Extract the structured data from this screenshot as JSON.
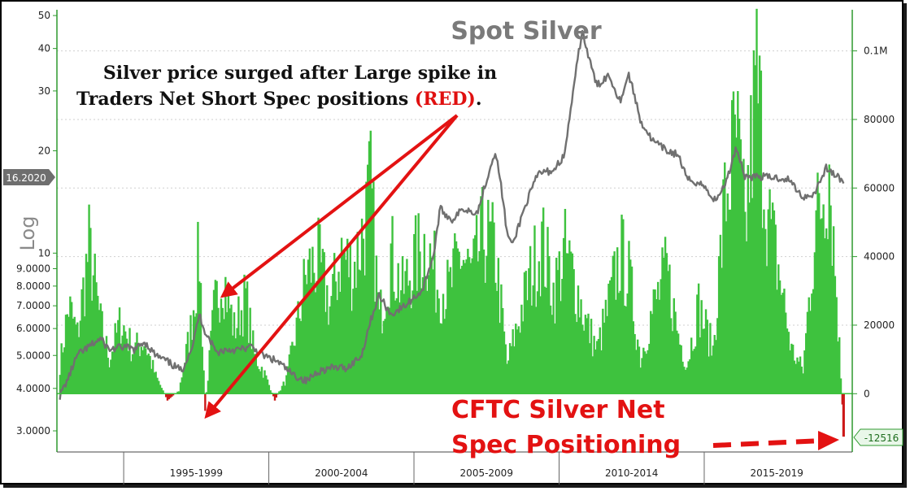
{
  "chart_data": {
    "type": "line+bar",
    "title": "Spot Silver",
    "ylabel_left": "Log",
    "left_axis": {
      "scale": "log",
      "ticks": [
        {
          "v": 50,
          "label": "50"
        },
        {
          "v": 40,
          "label": "40"
        },
        {
          "v": 30,
          "label": "30"
        },
        {
          "v": 20,
          "label": "20"
        },
        {
          "v": 10,
          "label": "10"
        },
        {
          "v": 9,
          "label": "9.0000"
        },
        {
          "v": 8,
          "label": "8.0000"
        },
        {
          "v": 7,
          "label": "7.0000"
        },
        {
          "v": 6,
          "label": "6.0000"
        },
        {
          "v": 5,
          "label": "5.0000"
        },
        {
          "v": 4,
          "label": "4.0000"
        },
        {
          "v": 3,
          "label": "3.0000"
        }
      ],
      "ylim": [
        2.6,
        52
      ]
    },
    "right_axis": {
      "ticks": [
        {
          "v": 100000,
          "label": "0.1M"
        },
        {
          "v": 80000,
          "label": "80000"
        },
        {
          "v": 60000,
          "label": "60000"
        },
        {
          "v": 40000,
          "label": "40000"
        },
        {
          "v": 20000,
          "label": "20000"
        },
        {
          "v": 0,
          "label": "0"
        }
      ],
      "ylim": [
        -17000,
        112000
      ]
    },
    "x_periods": [
      "1995-1999",
      "2000-2004",
      "2005-2009",
      "2010-2014",
      "2015-2019"
    ],
    "x_range": [
      1993.2,
      2020.6
    ],
    "last_price_label": "16.2020",
    "last_position_label": "-12516",
    "silver_price": [
      [
        1993.3,
        3.8
      ],
      [
        1993.6,
        4.3
      ],
      [
        1993.9,
        5.0
      ],
      [
        1994.3,
        5.3
      ],
      [
        1994.7,
        5.6
      ],
      [
        1995.0,
        5.2
      ],
      [
        1995.5,
        5.3
      ],
      [
        1995.9,
        5.2
      ],
      [
        1996.2,
        5.5
      ],
      [
        1996.6,
        5.0
      ],
      [
        1997.0,
        4.8
      ],
      [
        1997.5,
        4.5
      ],
      [
        1997.9,
        5.4
      ],
      [
        1998.1,
        6.6
      ],
      [
        1998.3,
        5.9
      ],
      [
        1998.7,
        5.1
      ],
      [
        1999.0,
        5.2
      ],
      [
        1999.5,
        5.2
      ],
      [
        1999.9,
        5.3
      ],
      [
        2000.3,
        5.0
      ],
      [
        2000.8,
        4.8
      ],
      [
        2001.3,
        4.4
      ],
      [
        2001.8,
        4.2
      ],
      [
        2002.2,
        4.5
      ],
      [
        2002.7,
        4.6
      ],
      [
        2003.2,
        4.6
      ],
      [
        2003.7,
        5.0
      ],
      [
        2004.0,
        6.3
      ],
      [
        2004.3,
        7.5
      ],
      [
        2004.7,
        6.6
      ],
      [
        2005.2,
        7.0
      ],
      [
        2005.8,
        7.8
      ],
      [
        2006.2,
        10.0
      ],
      [
        2006.4,
        13.5
      ],
      [
        2006.8,
        12.5
      ],
      [
        2007.2,
        13.5
      ],
      [
        2007.7,
        13.2
      ],
      [
        2008.1,
        17.5
      ],
      [
        2008.3,
        20.0
      ],
      [
        2008.7,
        11.5
      ],
      [
        2008.9,
        10.5
      ],
      [
        2009.3,
        13.5
      ],
      [
        2009.8,
        17.2
      ],
      [
        2010.3,
        17.5
      ],
      [
        2010.7,
        19.5
      ],
      [
        2011.0,
        30.0
      ],
      [
        2011.3,
        45.0
      ],
      [
        2011.5,
        38.0
      ],
      [
        2011.8,
        31.0
      ],
      [
        2012.2,
        33.5
      ],
      [
        2012.6,
        28.0
      ],
      [
        2012.9,
        33.5
      ],
      [
        2013.3,
        24.5
      ],
      [
        2013.7,
        21.5
      ],
      [
        2014.2,
        20.0
      ],
      [
        2014.6,
        19.5
      ],
      [
        2014.9,
        16.5
      ],
      [
        2015.4,
        16.0
      ],
      [
        2015.9,
        14.2
      ],
      [
        2016.3,
        16.5
      ],
      [
        2016.6,
        20.5
      ],
      [
        2016.9,
        16.8
      ],
      [
        2017.4,
        16.8
      ],
      [
        2017.9,
        16.7
      ],
      [
        2018.4,
        16.5
      ],
      [
        2018.9,
        14.6
      ],
      [
        2019.3,
        15.0
      ],
      [
        2019.7,
        17.8
      ],
      [
        2020.0,
        17.0
      ],
      [
        2020.3,
        16.2
      ]
    ],
    "net_spec_positioning": [
      [
        1993.3,
        10000
      ],
      [
        1993.6,
        30000
      ],
      [
        1993.9,
        20000
      ],
      [
        1994.3,
        50000
      ],
      [
        1994.7,
        24000
      ],
      [
        1995.0,
        12000
      ],
      [
        1995.4,
        25000
      ],
      [
        1995.8,
        15000
      ],
      [
        1996.2,
        18000
      ],
      [
        1996.6,
        6000
      ],
      [
        1997.0,
        -2000
      ],
      [
        1997.4,
        1000
      ],
      [
        1997.8,
        22000
      ],
      [
        1998.1,
        48000
      ],
      [
        1998.3,
        -5000
      ],
      [
        1998.6,
        28000
      ],
      [
        1998.9,
        42000
      ],
      [
        1999.3,
        22000
      ],
      [
        1999.7,
        33000
      ],
      [
        2000.0,
        13000
      ],
      [
        2000.3,
        8000
      ],
      [
        2000.7,
        -2000
      ],
      [
        2001.1,
        5000
      ],
      [
        2001.5,
        25000
      ],
      [
        2001.8,
        42000
      ],
      [
        2002.2,
        45000
      ],
      [
        2002.6,
        30000
      ],
      [
        2003.0,
        48000
      ],
      [
        2003.4,
        42000
      ],
      [
        2003.8,
        58000
      ],
      [
        2004.0,
        70000
      ],
      [
        2004.3,
        25000
      ],
      [
        2004.7,
        48000
      ],
      [
        2005.1,
        35000
      ],
      [
        2005.5,
        45000
      ],
      [
        2005.9,
        52000
      ],
      [
        2006.3,
        38000
      ],
      [
        2006.7,
        35000
      ],
      [
        2007.1,
        48000
      ],
      [
        2007.5,
        40000
      ],
      [
        2007.9,
        55000
      ],
      [
        2008.3,
        48000
      ],
      [
        2008.7,
        10000
      ],
      [
        2009.1,
        25000
      ],
      [
        2009.5,
        40000
      ],
      [
        2009.9,
        52000
      ],
      [
        2010.3,
        35000
      ],
      [
        2010.7,
        48000
      ],
      [
        2011.0,
        40000
      ],
      [
        2011.4,
        25000
      ],
      [
        2011.8,
        15000
      ],
      [
        2012.2,
        30000
      ],
      [
        2012.6,
        48000
      ],
      [
        2012.9,
        40000
      ],
      [
        2013.3,
        12000
      ],
      [
        2013.7,
        28000
      ],
      [
        2014.2,
        42000
      ],
      [
        2014.6,
        20000
      ],
      [
        2014.9,
        10000
      ],
      [
        2015.3,
        30000
      ],
      [
        2015.8,
        15000
      ],
      [
        2016.2,
        65000
      ],
      [
        2016.6,
        88000
      ],
      [
        2016.9,
        55000
      ],
      [
        2017.3,
        108000
      ],
      [
        2017.7,
        60000
      ],
      [
        2018.1,
        40000
      ],
      [
        2018.5,
        15000
      ],
      [
        2018.9,
        8000
      ],
      [
        2019.3,
        55000
      ],
      [
        2019.8,
        80000
      ],
      [
        2020.1,
        25000
      ],
      [
        2020.3,
        -12516
      ]
    ]
  },
  "annotations": {
    "headline_line1": "Silver price surged after Large spike in",
    "headline_line2_prefix": "Traders Net Short Spec positions ",
    "headline_line2_red": "(RED)",
    "headline_line2_suffix": ".",
    "cftc_line1": "CFTC Silver Net",
    "cftc_line2": "Spec Positioning"
  },
  "colors": {
    "bar_positive": "#3ec23e",
    "bar_negative": "#cc1818",
    "price_line": "#707070",
    "arrow": "#e31212",
    "right_axis": "#2e9a2e"
  }
}
